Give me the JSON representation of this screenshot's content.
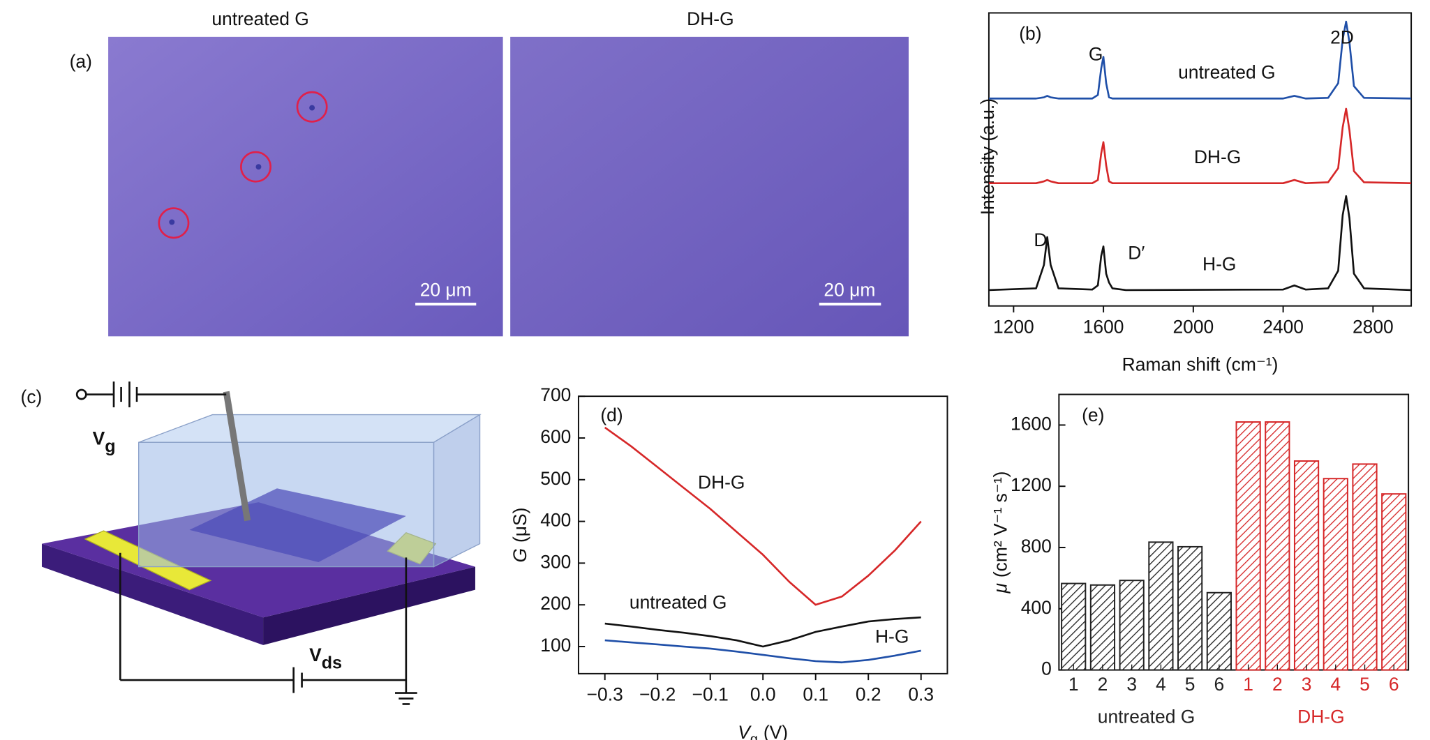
{
  "panels": {
    "a": {
      "label": "(a)",
      "images": [
        "untreated G",
        "DH-G"
      ],
      "scale_bar": "20 μm"
    },
    "c": {
      "label": "(c)",
      "gate": {
        "symbol": "V",
        "subscript": "g"
      },
      "drain": {
        "symbol": "V",
        "subscript": "ds"
      }
    }
  },
  "chart_data": [
    {
      "type": "line",
      "label": "(b)",
      "x_label": "Raman shift (cm⁻¹)",
      "y_label": "Intensity (a.u.)",
      "xlim": [
        1090,
        2970
      ],
      "xticks": [
        1200,
        1600,
        2000,
        2400,
        2800
      ],
      "ylim": [
        0,
        10
      ],
      "x": [
        1090,
        1300,
        1335,
        1350,
        1365,
        1400,
        1550,
        1575,
        1590,
        1600,
        1612,
        1625,
        1640,
        1700,
        2400,
        2450,
        2500,
        2600,
        2645,
        2665,
        2680,
        2695,
        2715,
        2760,
        2970
      ],
      "series": [
        {
          "name": "untreated G",
          "color": "#1f4fa8",
          "values": [
            7.08,
            7.08,
            7.12,
            7.17,
            7.12,
            7.08,
            7.08,
            7.2,
            8.1,
            8.5,
            7.6,
            7.12,
            7.08,
            7.08,
            7.08,
            7.17,
            7.08,
            7.1,
            7.6,
            9.1,
            9.7,
            9.0,
            7.5,
            7.1,
            7.08
          ]
        },
        {
          "name": "DH-G",
          "color": "#d62728",
          "values": [
            4.19,
            4.19,
            4.25,
            4.3,
            4.25,
            4.19,
            4.19,
            4.3,
            5.2,
            5.59,
            4.8,
            4.25,
            4.19,
            4.19,
            4.19,
            4.3,
            4.19,
            4.22,
            4.7,
            6.1,
            6.73,
            6.0,
            4.6,
            4.22,
            4.19
          ]
        },
        {
          "name": "H-G",
          "color": "#111111",
          "values": [
            0.54,
            0.6,
            1.4,
            2.35,
            1.4,
            0.6,
            0.56,
            0.7,
            1.7,
            2.03,
            1.1,
            0.8,
            0.6,
            0.54,
            0.56,
            0.7,
            0.56,
            0.6,
            1.2,
            3.1,
            3.75,
            3.0,
            1.1,
            0.6,
            0.54
          ]
        }
      ],
      "annotations": [
        "G",
        "2D",
        "untreated G",
        "DH-G",
        "D",
        "D′",
        "H-G"
      ]
    },
    {
      "type": "line",
      "label": "(d)",
      "x_label": {
        "symbol": "V",
        "subscript": "g",
        "unit": "(V)"
      },
      "y_label": {
        "symbol": "G",
        "unit": "(μS)"
      },
      "xlim": [
        -0.35,
        0.35
      ],
      "xticks": [
        {
          "value": -0.3,
          "label": "−0.3"
        },
        {
          "value": -0.2,
          "label": "−0.2"
        },
        {
          "value": -0.1,
          "label": "−0.1"
        },
        {
          "value": 0,
          "label": "0.0"
        },
        {
          "value": 0.1,
          "label": "0.1"
        },
        {
          "value": 0.2,
          "label": "0.2"
        },
        {
          "value": 0.3,
          "label": "0.3"
        }
      ],
      "ylim": [
        35,
        700
      ],
      "yticks": [
        100,
        200,
        300,
        400,
        500,
        600,
        700
      ],
      "x": [
        -0.3,
        -0.25,
        -0.2,
        -0.15,
        -0.1,
        -0.05,
        0,
        0.05,
        0.1,
        0.15,
        0.2,
        0.25,
        0.3
      ],
      "series": [
        {
          "name": "DH-G",
          "color": "#d62728",
          "values": [
            625,
            580,
            530,
            480,
            430,
            375,
            320,
            255,
            200,
            220,
            270,
            330,
            400
          ]
        },
        {
          "name": "untreated G",
          "color": "#111111",
          "values": [
            155,
            148,
            140,
            133,
            125,
            115,
            100,
            115,
            135,
            148,
            160,
            166,
            170
          ]
        },
        {
          "name": "H-G",
          "color": "#1f4fa8",
          "values": [
            115,
            110,
            105,
            100,
            95,
            88,
            80,
            72,
            65,
            62,
            68,
            78,
            90
          ]
        }
      ],
      "annotations": [
        "DH-G",
        "untreated G",
        "H-G"
      ]
    },
    {
      "type": "bar",
      "label": "(e)",
      "y_label": {
        "symbol": "μ",
        "unit": "(cm² V⁻¹ s⁻¹)"
      },
      "ylim": [
        0,
        1800
      ],
      "yticks": [
        0,
        400,
        800,
        1200,
        1600
      ],
      "series": [
        {
          "name": "untreated G",
          "color": "#222222",
          "categories": [
            "1",
            "2",
            "3",
            "4",
            "5",
            "6"
          ],
          "values": [
            565,
            555,
            585,
            835,
            805,
            505
          ]
        },
        {
          "name": "DH-G",
          "color": "#d62728",
          "categories": [
            "1",
            "2",
            "3",
            "4",
            "5",
            "6"
          ],
          "values": [
            1620,
            1620,
            1365,
            1250,
            1345,
            1150
          ]
        }
      ]
    }
  ]
}
